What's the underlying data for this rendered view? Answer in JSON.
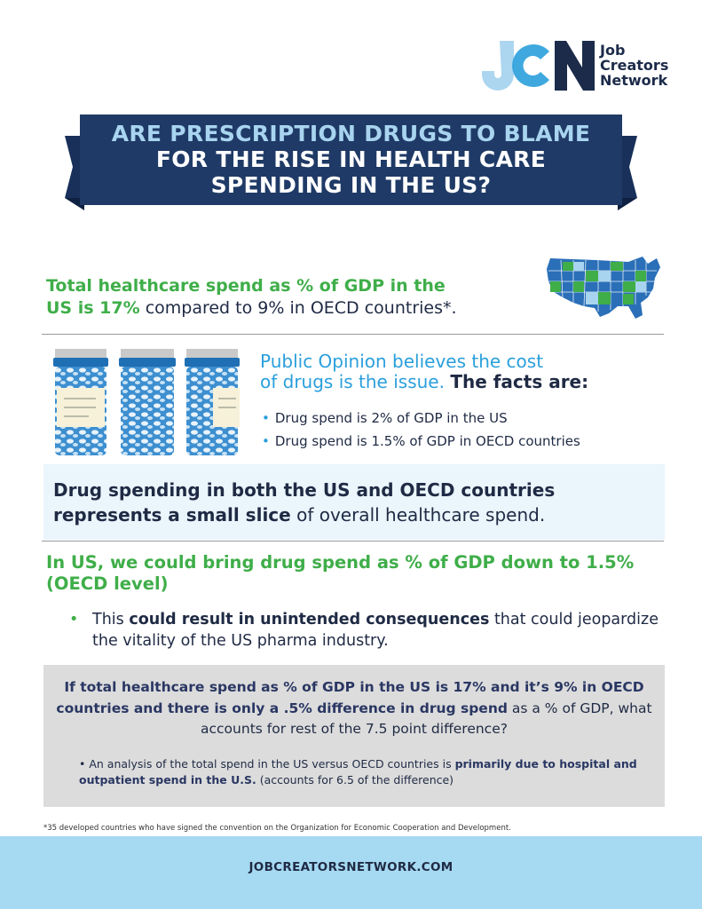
{
  "logo": {
    "mark_letters": "JCN",
    "name_lines": [
      "Job",
      "Creators",
      "Network"
    ]
  },
  "banner": {
    "line1": "ARE PRESCRIPTION DRUGS TO BLAME",
    "line2": "FOR THE RISE IN HEALTH CARE",
    "line3": "SPENDING IN THE US?"
  },
  "stat": {
    "highlight_1": "Total healthcare spend as % of GDP in the",
    "highlight_2": "US is 17%",
    "rest": " compared to 9% in OECD countries*."
  },
  "map_icon": "us-map-icon",
  "opinion": {
    "heading_1": "Public Opinion believes the cost",
    "heading_2": "of drugs is the issue. ",
    "heading_bold": "The facts are:",
    "facts": [
      "Drug spend is  2% of GDP in the US",
      "Drug spend is 1.5% of GDP in OECD countries"
    ]
  },
  "slice": {
    "bold": "Drug spending in both the US and OECD countries represents a small slice",
    "rest": " of overall healthcare spend."
  },
  "reduce": {
    "heading": "In US, we could bring drug spend as % of GDP down to 1.5% (OECD level)",
    "bullet_pre": "This ",
    "bullet_bold": "could result in unintended consequences",
    "bullet_post": " that could jeopardize the vitality of the US pharma industry."
  },
  "analysis": {
    "question_bold": "If total healthcare spend as % of GDP in the US is 17% and it’s 9% in OECD countries and there is only a .5% difference in drug spend",
    "question_rest": " as a % of GDP, what accounts for rest of the 7.5 point difference?",
    "bullet_pre": "An analysis of the total spend in the US versus OECD countries is ",
    "bullet_bold": "primarily due to hospital and outpatient spend in the U.S.",
    "bullet_post": " (accounts for 6.5 of the difference)"
  },
  "footnote": "*35 developed countries who have signed the convention on the Organization for Economic Cooperation and Development.",
  "footer": {
    "url": "JOBCREATORSNETWORK.COM"
  },
  "colors": {
    "navy": "#1f3a66",
    "green": "#3fae49",
    "blue": "#2a9fdc",
    "light_blue": "#a6d9f2"
  }
}
